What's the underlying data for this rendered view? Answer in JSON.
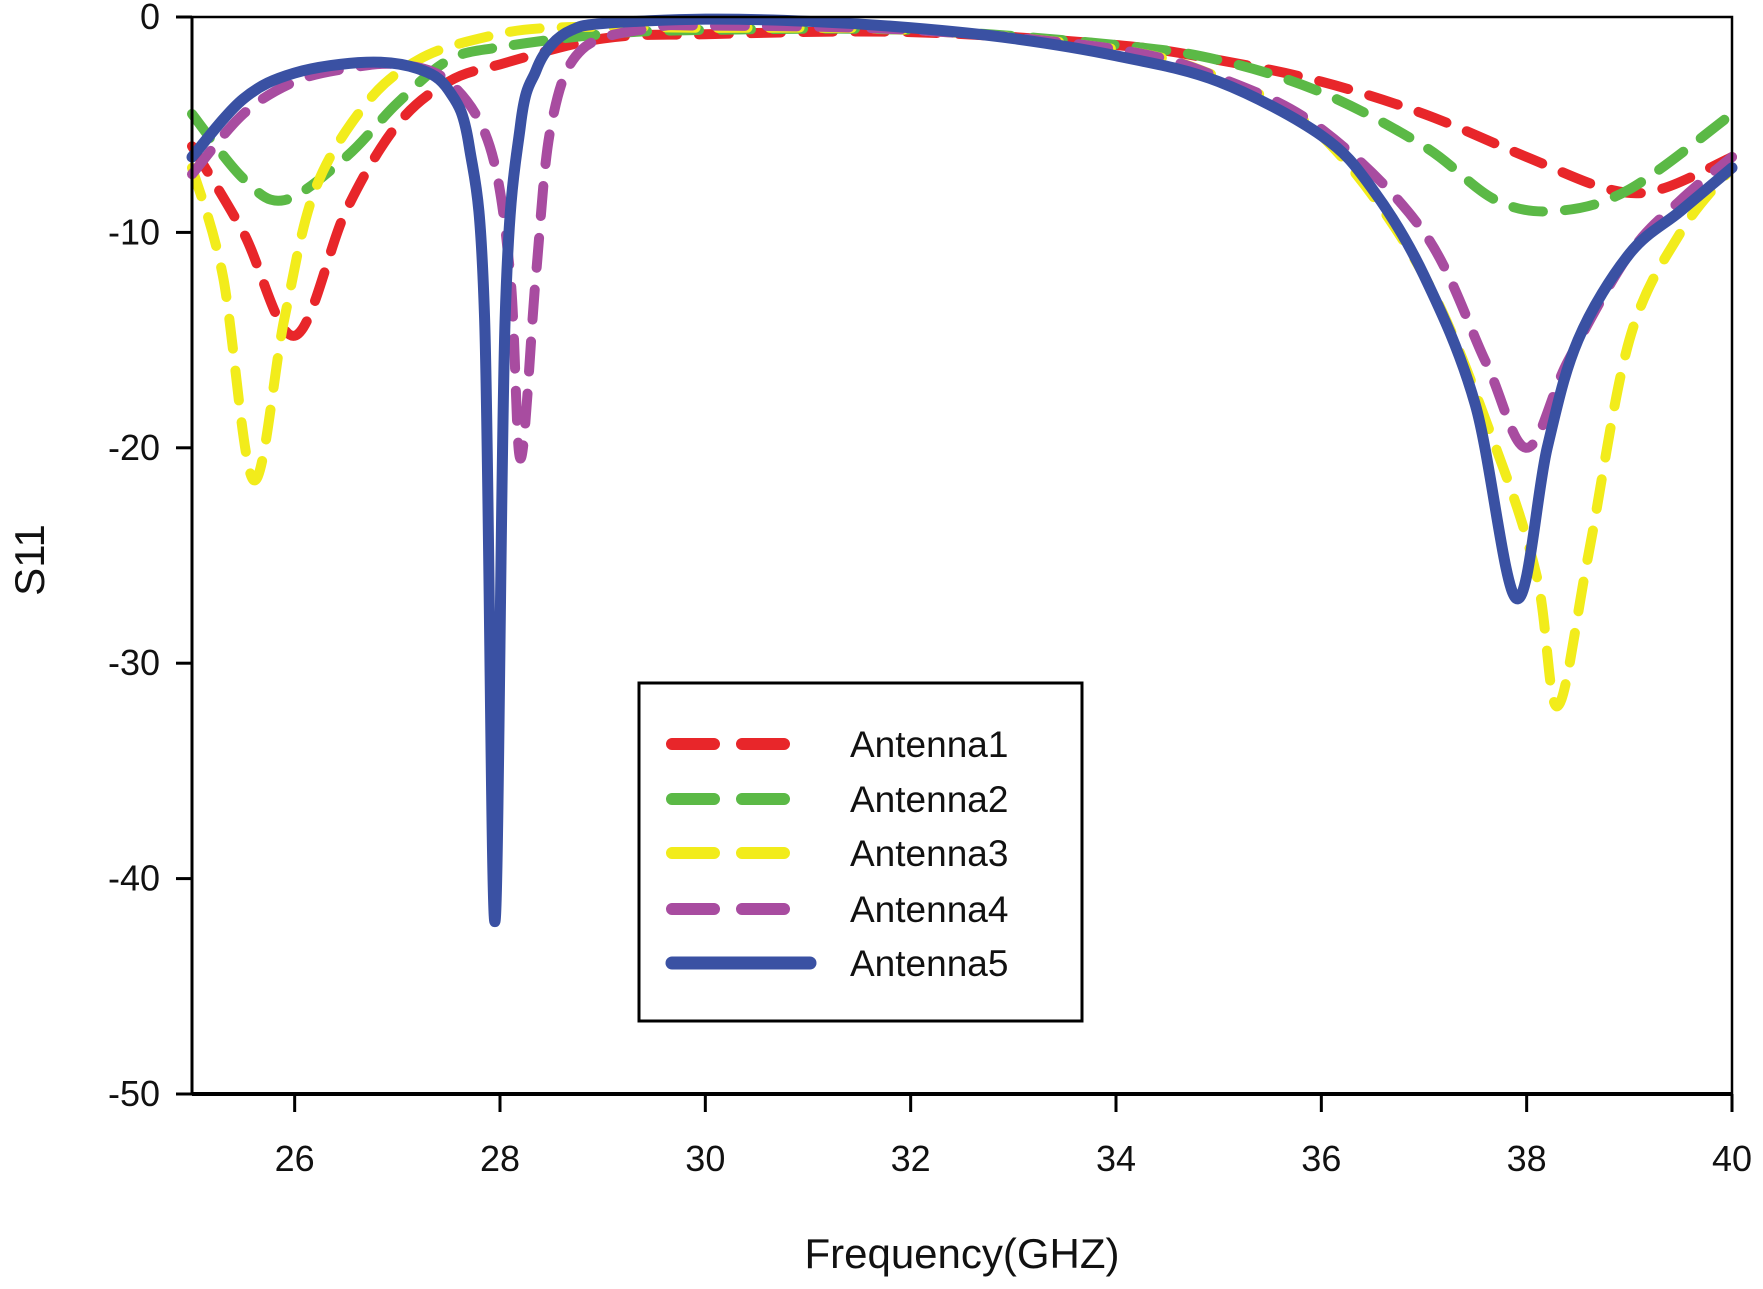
{
  "chart_data": {
    "type": "line",
    "title": "",
    "xlabel": "Frequency(GHZ)",
    "ylabel": "S11",
    "xlim": [
      25,
      40
    ],
    "ylim": [
      -50,
      0
    ],
    "xticks": [
      26,
      28,
      30,
      32,
      34,
      36,
      38,
      40
    ],
    "yticks": [
      0,
      -10,
      -20,
      -30,
      -40,
      -50
    ],
    "grid": false,
    "legend_position": "center-bottom",
    "series": [
      {
        "name": "Antenna1",
        "color": "#e8262a",
        "style": "dashed",
        "x": [
          25,
          25.5,
          26.0,
          26.5,
          27,
          27.5,
          28,
          29,
          30,
          32,
          34,
          35,
          36,
          37,
          38,
          38.8,
          39.3,
          40
        ],
        "y": [
          -6,
          -10,
          -14.8,
          -9,
          -5,
          -3,
          -2.2,
          -1,
          -0.8,
          -0.7,
          -1.3,
          -2,
          -3,
          -4.5,
          -6.5,
          -8,
          -8,
          -6.5
        ]
      },
      {
        "name": "Antenna2",
        "color": "#5bb946",
        "style": "dashed",
        "x": [
          25,
          25.5,
          25.9,
          26.5,
          27,
          27.5,
          28,
          29,
          30,
          32,
          34,
          35,
          36,
          37,
          37.7,
          38.3,
          39,
          40
        ],
        "y": [
          -4.5,
          -7.5,
          -8.5,
          -6.5,
          -4,
          -2,
          -1.4,
          -0.8,
          -0.6,
          -0.6,
          -1.3,
          -2,
          -3.5,
          -6,
          -8.5,
          -9,
          -8,
          -4.5
        ]
      },
      {
        "name": "Antenna3",
        "color": "#f2ec1b",
        "style": "dashed",
        "x": [
          25,
          25.3,
          25.6,
          25.9,
          26.2,
          26.7,
          27.2,
          27.8,
          28.5,
          30,
          32,
          34,
          35,
          36,
          37,
          37.7,
          38.1,
          38.3,
          38.6,
          39,
          39.5,
          40
        ],
        "y": [
          -7,
          -12,
          -21.5,
          -14,
          -8,
          -4,
          -2,
          -1,
          -0.5,
          -0.5,
          -0.6,
          -1.5,
          -2.8,
          -5.5,
          -12,
          -20,
          -26,
          -32,
          -25,
          -15,
          -10,
          -7
        ]
      },
      {
        "name": "Antenna4",
        "color": "#a84ca0",
        "style": "dashed",
        "x": [
          25,
          25.5,
          26,
          26.5,
          27,
          27.5,
          27.9,
          28.1,
          28.2,
          28.35,
          28.5,
          28.8,
          29.5,
          30,
          32,
          34,
          35,
          36,
          37,
          37.6,
          38,
          38.4,
          39,
          39.5,
          40
        ],
        "y": [
          -7.3,
          -4.5,
          -3,
          -2.4,
          -2.2,
          -3,
          -6,
          -12,
          -20.5,
          -12,
          -5,
          -1.5,
          -0.5,
          -0.4,
          -0.6,
          -1.5,
          -2.8,
          -5.2,
          -10,
          -16,
          -20,
          -16,
          -11,
          -8.5,
          -6.5
        ]
      },
      {
        "name": "Antenna5",
        "color": "#3a51a3",
        "style": "solid",
        "x": [
          25,
          25.5,
          26,
          26.7,
          27.2,
          27.5,
          27.7,
          27.85,
          27.95,
          28.05,
          28.2,
          28.35,
          28.5,
          28.7,
          29,
          30,
          31,
          32,
          33,
          34,
          35,
          36,
          36.5,
          37,
          37.5,
          37.9,
          38.2,
          38.5,
          39,
          39.5,
          40
        ],
        "y": [
          -6.5,
          -3.8,
          -2.6,
          -2.1,
          -2.4,
          -3.4,
          -6,
          -14,
          -42,
          -14,
          -5,
          -2.5,
          -1.3,
          -0.6,
          -0.3,
          -0.1,
          -0.2,
          -0.5,
          -1.0,
          -1.8,
          -3,
          -5.5,
          -8,
          -12,
          -18,
          -27,
          -20,
          -15,
          -11,
          -9,
          -7
        ]
      }
    ]
  }
}
